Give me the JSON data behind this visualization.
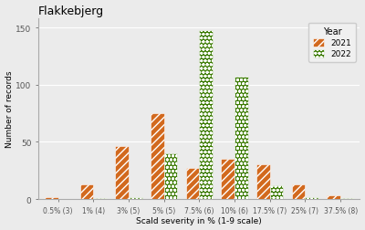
{
  "title": "Flakkebjerg",
  "xlabel": "Scald severity in % (1-9 scale)",
  "ylabel": "Number of records",
  "categories": [
    "0.5% (3)",
    "1% (4)",
    "3% (5)",
    "5% (5)",
    "7.5% (6)",
    "10% (6)",
    "17.5% (7)",
    "25% (7)",
    "37.5% (8)"
  ],
  "values_2021": [
    2,
    13,
    46,
    75,
    27,
    35,
    30,
    13,
    3
  ],
  "values_2022": [
    0,
    1,
    2,
    40,
    148,
    107,
    12,
    2,
    1
  ],
  "color_2021": "#D2691E",
  "color_2022": "#3A7A00",
  "background_color": "#EBEBEB",
  "ylim": [
    0,
    158
  ],
  "yticks": [
    0,
    50,
    100,
    150
  ],
  "bar_width": 0.38,
  "legend_title": "Year"
}
